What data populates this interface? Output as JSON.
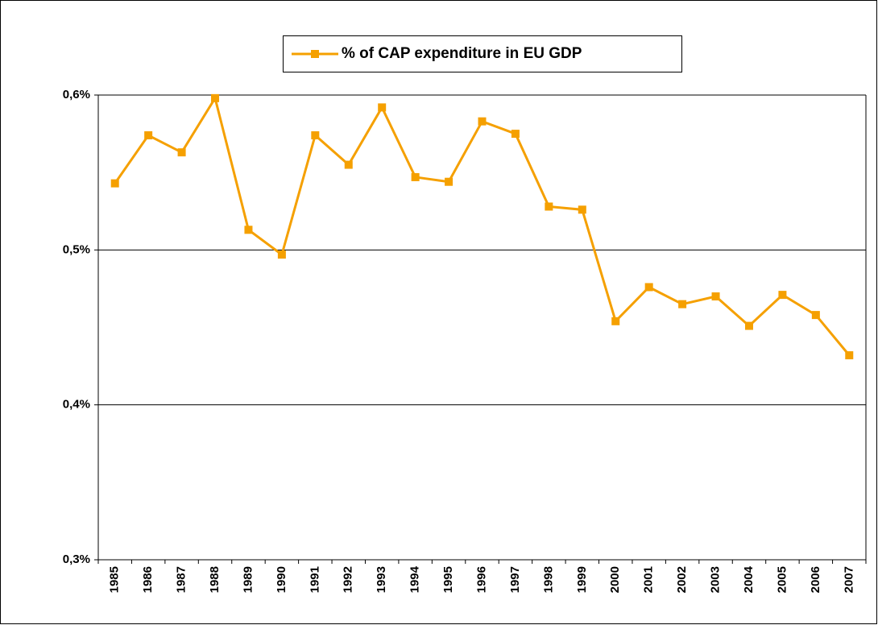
{
  "chart_data": {
    "type": "line",
    "categories": [
      "1985",
      "1986",
      "1987",
      "1988",
      "1989",
      "1990",
      "1991",
      "1992",
      "1993",
      "1994",
      "1995",
      "1996",
      "1997",
      "1998",
      "1999",
      "2000",
      "2001",
      "2002",
      "2003",
      "2004",
      "2005",
      "2006",
      "2007"
    ],
    "series": [
      {
        "name": "% of CAP expenditure in EU GDP",
        "color": "#f5a000",
        "values": [
          0.543,
          0.574,
          0.563,
          0.598,
          0.513,
          0.497,
          0.574,
          0.555,
          0.592,
          0.547,
          0.544,
          0.583,
          0.575,
          0.528,
          0.526,
          0.454,
          0.476,
          0.465,
          0.47,
          0.451,
          0.471,
          0.458,
          0.432
        ]
      }
    ],
    "ylim": [
      0.3,
      0.6
    ],
    "yticks": [
      {
        "value": 0.3,
        "label": "0,3%"
      },
      {
        "value": 0.4,
        "label": "0,4%"
      },
      {
        "value": 0.5,
        "label": "0,5%"
      },
      {
        "value": 0.6,
        "label": "0,6%"
      }
    ],
    "grid": true,
    "legend": "top"
  }
}
